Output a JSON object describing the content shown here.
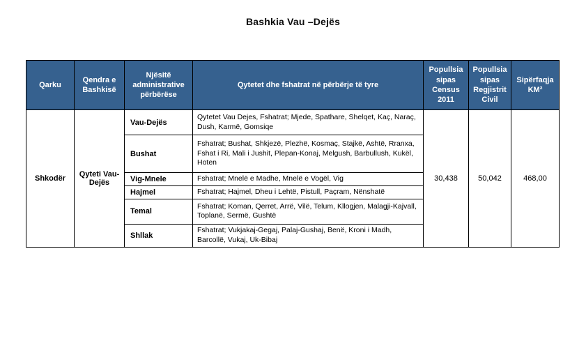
{
  "page": {
    "title": "Bashkia Vau –Dejës"
  },
  "colors": {
    "header_bg": "#36618F",
    "header_text": "#FFFFFF",
    "border": "#000000",
    "page_bg": "#FFFFFF"
  },
  "table": {
    "headers": {
      "qarku": "Qarku",
      "qendra": "Qendra e Bashkisë",
      "njesite": "Njësitë administrative përbërëse",
      "qytetet": "Qytetet dhe fshatrat në përbërje të tyre",
      "census": "Popullsia sipas Census 2011",
      "civil": "Popullsia sipas Regjistrit Civil",
      "siperfaqja": "Sipërfaqja KM²"
    },
    "qarku": "Shkodër",
    "qendra": "Qyteti Vau-Dejës",
    "rows": [
      {
        "unit": "Vau-Dejës",
        "settlements": "Qytetet Vau Dejes, Fshatrat; Mjede, Spathare, Shelqet, Kaç, Naraç, Dush, Karmë, Gomsiqe"
      },
      {
        "unit": "Bushat",
        "settlements": "Fshatrat; Bushat, Shkjezë, Plezhë, Kosmaç, Stajkë, Ashtë, Rranxa, Fshat i Ri, Mali i Jushit, Plepan-Konaj, Melgush, Barbullush, Kukël, Hoten"
      },
      {
        "unit": "Vig-Mnele",
        "settlements": "Fshatrat; Mnelë e Madhe, Mnelë e Vogël, Vig"
      },
      {
        "unit": "Hajmel",
        "settlements": "Fshatrat; Hajmel, Dheu i Lehtë, Pistull, Paçram, Nënshatë"
      },
      {
        "unit": "Temal",
        "settlements": "Fshatrat; Koman, Qerret, Arrë, Vilë, Telum, Kllogjen, Malagji-Kajvall, Toplanë, Sermë, Gushtë"
      },
      {
        "unit": "Shllak",
        "settlements": "Fshatrat; Vukjakaj-Gegaj, Palaj-Gushaj, Benë, Kroni i Madh, Barcollë, Vukaj, Uk-Bibaj"
      }
    ],
    "popullsia_census_2011": "30,438",
    "popullsia_regjistri_civil": "50,042",
    "siperfaqja_km2": "468,00"
  }
}
